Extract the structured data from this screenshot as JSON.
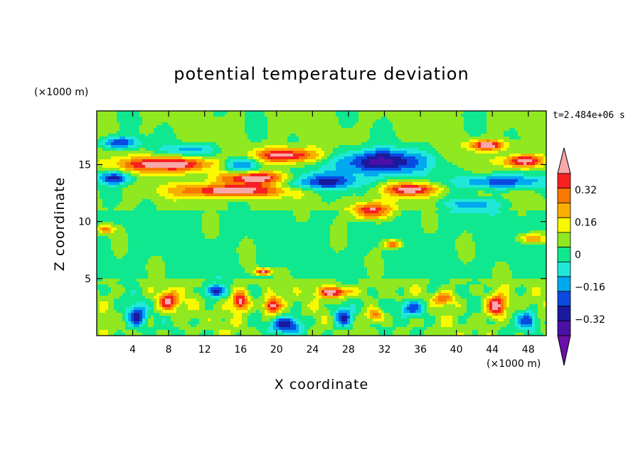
{
  "chart_data": {
    "type": "heatmap",
    "title": "potential temperature deviation",
    "xlabel": "X coordinate",
    "ylabel": "Z coordinate",
    "x_unit": "(×1000 m)",
    "y_unit": "(×1000 m)",
    "time_label": "t=2.484e+06 s",
    "xlim": [
      0,
      50
    ],
    "ylim": [
      0,
      19.7
    ],
    "x_ticks": [
      4,
      8,
      12,
      16,
      20,
      24,
      28,
      32,
      36,
      40,
      44,
      48
    ],
    "y_ticks": [
      5,
      10,
      15
    ],
    "colorbar": {
      "levels": [
        -0.48,
        -0.4,
        -0.32,
        -0.24,
        -0.16,
        -0.08,
        0,
        0.08,
        0.16,
        0.24,
        0.32,
        0.4,
        0.48
      ],
      "labels": [
        "0.32",
        "0.16",
        "0",
        "−0.16",
        "−0.32"
      ],
      "label_values": [
        0.32,
        0.16,
        0,
        -0.16,
        -0.32
      ],
      "colors": [
        "#6a0fa8",
        "#4b10a8",
        "#1a1a9e",
        "#0a4ae0",
        "#00a8f0",
        "#20e8d8",
        "#10e890",
        "#90e820",
        "#f8f800",
        "#f8b000",
        "#f87800",
        "#f82020",
        "#f8a8a8"
      ]
    },
    "field_description": {
      "background_value": 0.02,
      "blobs": [
        {
          "x": 2.5,
          "z": 16.9,
          "rx": 2.5,
          "rz": 0.6,
          "v": -0.34
        },
        {
          "x": 8.0,
          "z": 15.0,
          "rx": 6.0,
          "rz": 0.7,
          "v": 0.46
        },
        {
          "x": 15.0,
          "z": 12.7,
          "rx": 6.5,
          "rz": 0.6,
          "v": 0.46
        },
        {
          "x": 2.0,
          "z": 13.8,
          "rx": 2.0,
          "rz": 0.6,
          "v": -0.34
        },
        {
          "x": 10.5,
          "z": 16.3,
          "rx": 3.5,
          "rz": 0.6,
          "v": -0.2
        },
        {
          "x": 16.0,
          "z": 15.0,
          "rx": 2.5,
          "rz": 0.8,
          "v": -0.34
        },
        {
          "x": 17.5,
          "z": 13.8,
          "rx": 4.5,
          "rz": 0.6,
          "v": 0.46
        },
        {
          "x": 21.0,
          "z": 15.8,
          "rx": 4.0,
          "rz": 0.7,
          "v": 0.46
        },
        {
          "x": 25.0,
          "z": 13.5,
          "rx": 5.0,
          "rz": 0.8,
          "v": -0.34
        },
        {
          "x": 31.5,
          "z": 15.2,
          "rx": 5.5,
          "rz": 1.2,
          "v": -0.46
        },
        {
          "x": 30.5,
          "z": 10.9,
          "rx": 2.2,
          "rz": 0.8,
          "v": 0.46
        },
        {
          "x": 35.0,
          "z": 12.8,
          "rx": 3.0,
          "rz": 0.6,
          "v": 0.46
        },
        {
          "x": 43.5,
          "z": 16.7,
          "rx": 2.2,
          "rz": 0.5,
          "v": 0.46
        },
        {
          "x": 47.5,
          "z": 15.3,
          "rx": 2.5,
          "rz": 0.6,
          "v": 0.46
        },
        {
          "x": 45.0,
          "z": 13.5,
          "rx": 5.0,
          "rz": 0.7,
          "v": -0.34
        },
        {
          "x": 42.0,
          "z": 11.5,
          "rx": 4.0,
          "rz": 0.6,
          "v": -0.2
        },
        {
          "x": 33.0,
          "z": 8.0,
          "rx": 1.0,
          "rz": 0.4,
          "v": 0.4
        },
        {
          "x": 1.0,
          "z": 9.3,
          "rx": 1.0,
          "rz": 0.4,
          "v": 0.3
        },
        {
          "x": 48.5,
          "z": 8.5,
          "rx": 1.5,
          "rz": 0.5,
          "v": 0.3
        },
        {
          "x": 8.0,
          "z": 3.0,
          "rx": 1.2,
          "rz": 0.9,
          "v": 0.45
        },
        {
          "x": 4.5,
          "z": 1.7,
          "rx": 1.2,
          "rz": 1.2,
          "v": -0.34
        },
        {
          "x": 13.0,
          "z": 3.9,
          "rx": 1.3,
          "rz": 0.6,
          "v": -0.34
        },
        {
          "x": 16.0,
          "z": 3.0,
          "rx": 1.0,
          "rz": 0.9,
          "v": 0.45
        },
        {
          "x": 19.5,
          "z": 2.6,
          "rx": 1.0,
          "rz": 0.8,
          "v": 0.45
        },
        {
          "x": 21.0,
          "z": 0.9,
          "rx": 2.0,
          "rz": 0.8,
          "v": -0.34
        },
        {
          "x": 26.5,
          "z": 3.8,
          "rx": 2.0,
          "rz": 0.5,
          "v": 0.45
        },
        {
          "x": 27.5,
          "z": 1.6,
          "rx": 1.2,
          "rz": 1.0,
          "v": -0.34
        },
        {
          "x": 35.0,
          "z": 2.4,
          "rx": 1.5,
          "rz": 0.8,
          "v": -0.34
        },
        {
          "x": 38.5,
          "z": 3.2,
          "rx": 1.2,
          "rz": 0.6,
          "v": 0.3
        },
        {
          "x": 44.5,
          "z": 2.6,
          "rx": 1.2,
          "rz": 1.0,
          "v": 0.45
        },
        {
          "x": 18.5,
          "z": 5.6,
          "rx": 1.0,
          "rz": 0.3,
          "v": 0.45
        },
        {
          "x": 31.0,
          "z": 1.8,
          "rx": 1.0,
          "rz": 0.6,
          "v": 0.3
        },
        {
          "x": 48.0,
          "z": 1.3,
          "rx": 1.2,
          "rz": 0.9,
          "v": -0.34
        }
      ]
    }
  }
}
